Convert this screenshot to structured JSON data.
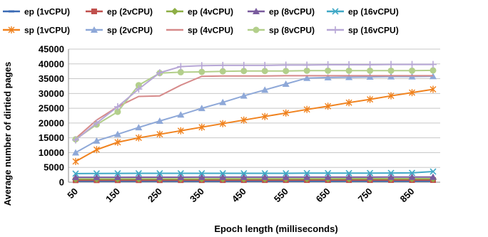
{
  "chart_data": {
    "type": "line",
    "title": "",
    "xlabel": "Epoch length (milliseconds)",
    "ylabel": "Average number of dirtied pages",
    "ylim": [
      0,
      45000
    ],
    "yticks": [
      0,
      5000,
      10000,
      15000,
      20000,
      25000,
      30000,
      35000,
      40000,
      45000
    ],
    "ytick_labels": [
      "0",
      "5000",
      "10000",
      "15000",
      "20000",
      "25000",
      "30000",
      "35000",
      "40000",
      "45000"
    ],
    "x": [
      50,
      100,
      150,
      200,
      250,
      300,
      350,
      400,
      450,
      500,
      550,
      600,
      650,
      700,
      750,
      800,
      850,
      900
    ],
    "xtick_labels": [
      "50",
      "150",
      "250",
      "350",
      "450",
      "550",
      "650",
      "750",
      "850"
    ],
    "grid": "horizontal",
    "legend_position": "top",
    "series": [
      {
        "name": "ep (1vCPU)",
        "color": "#3a6ab5",
        "marker": "dash",
        "values": [
          300,
          310,
          320,
          320,
          330,
          330,
          330,
          330,
          340,
          340,
          340,
          340,
          340,
          350,
          350,
          350,
          350,
          360
        ]
      },
      {
        "name": "ep (2vCPU)",
        "color": "#c0504d",
        "marker": "square",
        "values": [
          650,
          660,
          670,
          680,
          680,
          690,
          690,
          700,
          700,
          700,
          700,
          710,
          710,
          710,
          710,
          720,
          720,
          720
        ]
      },
      {
        "name": "ep (4vCPU)",
        "color": "#8dae45",
        "marker": "diamond",
        "values": [
          1050,
          1060,
          1070,
          1080,
          1080,
          1090,
          1090,
          1100,
          1100,
          1100,
          1110,
          1110,
          1110,
          1120,
          1120,
          1120,
          1130,
          1130
        ]
      },
      {
        "name": "ep (8vCPU)",
        "color": "#7a5c9e",
        "marker": "triangle",
        "values": [
          1650,
          1660,
          1670,
          1680,
          1680,
          1690,
          1700,
          1700,
          1700,
          1710,
          1710,
          1710,
          1720,
          1720,
          1720,
          1730,
          1730,
          1740
        ]
      },
      {
        "name": "ep (16vCPU)",
        "color": "#3fa8c6",
        "marker": "x",
        "values": [
          2900,
          2950,
          2980,
          3000,
          3000,
          3000,
          3000,
          3000,
          3000,
          3000,
          3000,
          3050,
          3050,
          3050,
          3080,
          3100,
          3150,
          3600
        ]
      },
      {
        "name": "sp (1vCPU)",
        "color": "#f0821e",
        "marker": "star",
        "values": [
          7000,
          11000,
          13500,
          15000,
          16200,
          17400,
          18600,
          19800,
          21000,
          22200,
          23400,
          24600,
          25700,
          26900,
          28000,
          29200,
          30300,
          31400
        ]
      },
      {
        "name": "sp (2vCPU)",
        "color": "#8ea8d8",
        "marker": "triangle",
        "values": [
          10000,
          14000,
          16200,
          18500,
          20700,
          22800,
          25000,
          27000,
          29200,
          31200,
          33200,
          35200,
          35400,
          35500,
          35600,
          35700,
          35700,
          35800
        ]
      },
      {
        "name": "sp (4vCPU)",
        "color": "#d68a8a",
        "marker": "none",
        "values": [
          14800,
          21000,
          25500,
          29000,
          29200,
          32800,
          35800,
          35900,
          35900,
          35900,
          36000,
          36000,
          36000,
          36000,
          36000,
          36000,
          36000,
          36000
        ]
      },
      {
        "name": "sp (8vCPU)",
        "color": "#b3cf8b",
        "marker": "circle",
        "values": [
          14500,
          19500,
          23800,
          32800,
          36900,
          37200,
          37300,
          37500,
          37600,
          37600,
          37600,
          37700,
          37700,
          37700,
          37700,
          37700,
          37700,
          37800
        ]
      },
      {
        "name": "sp (16vCPU)",
        "color": "#b7a7d6",
        "marker": "plus",
        "values": [
          14300,
          20000,
          25500,
          31500,
          37000,
          39100,
          39400,
          39500,
          39500,
          39500,
          39600,
          39600,
          39700,
          39700,
          39700,
          39800,
          39800,
          39800
        ]
      }
    ]
  }
}
